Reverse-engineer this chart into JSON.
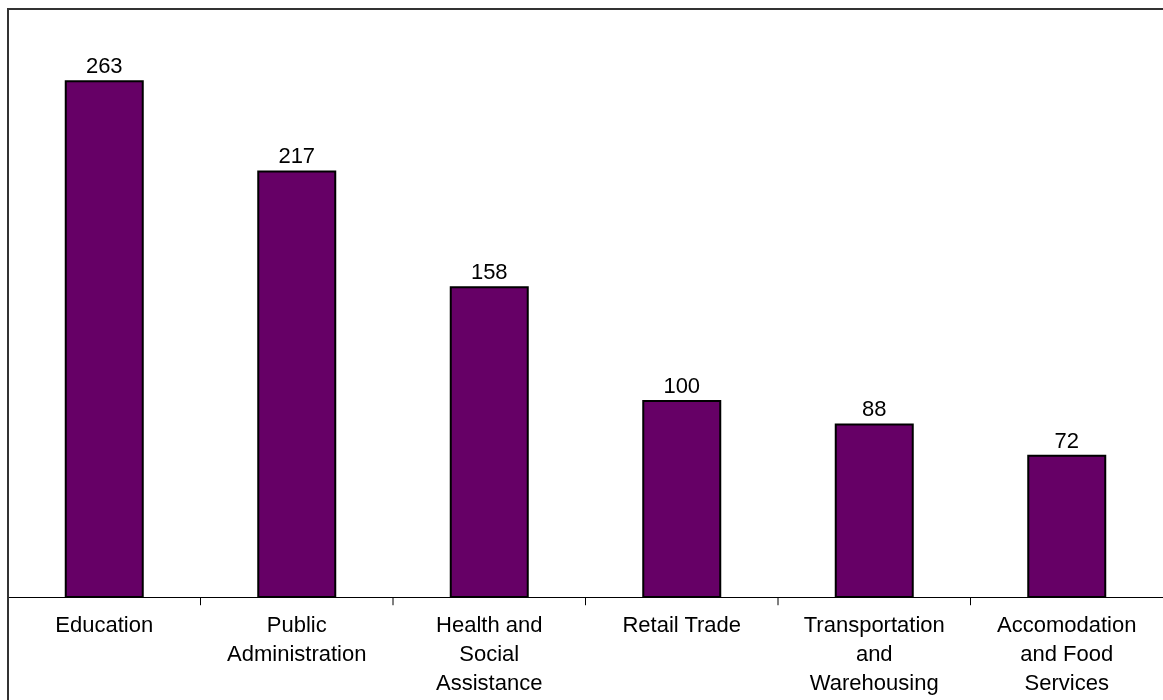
{
  "chart_data": {
    "type": "bar",
    "categories": [
      "Education",
      "Public Administration",
      "Health and Social Assistance",
      "Retail Trade",
      "Transportation and Warehousing",
      "Accomodation and Food Services"
    ],
    "values": [
      263,
      217,
      158,
      100,
      88,
      72
    ],
    "color": "#660066",
    "data_labels": true,
    "legend": false
  }
}
